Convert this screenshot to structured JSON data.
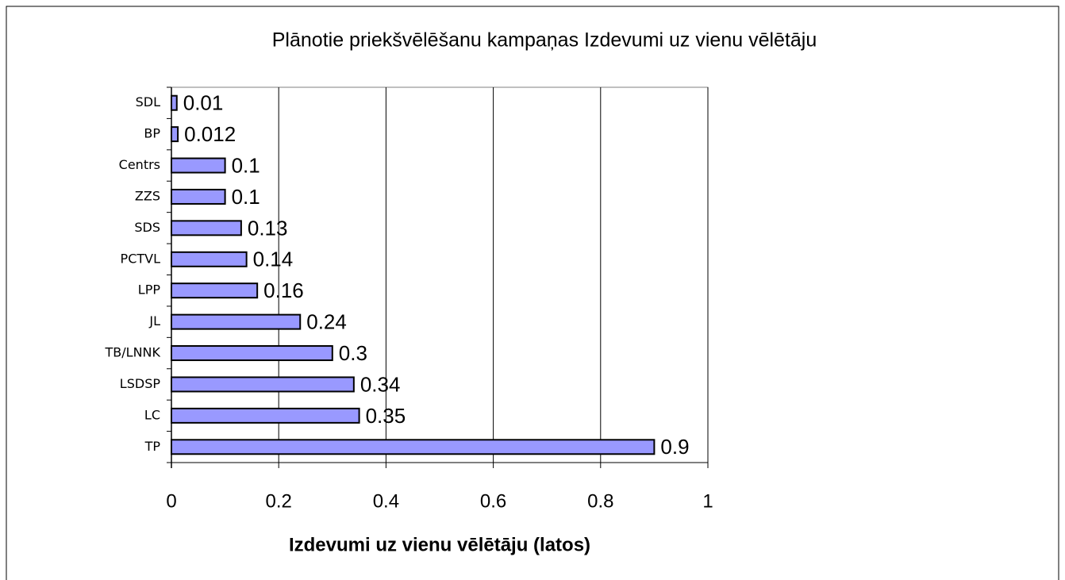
{
  "chart_data": {
    "type": "bar",
    "orientation": "horizontal",
    "title": "Plānotie priekšvēlēšanu kampaņas Izdevumi uz vienu vēlētāju",
    "xlabel": "Izdevumi uz vienu vēlētāju (latos)",
    "categories": [
      "SDL",
      "BP",
      "Centrs",
      "ZZS",
      "SDS",
      "PCTVL",
      "LPP",
      "JL",
      "TB/LNNK",
      "LSDSP",
      "LC",
      "TP"
    ],
    "values": [
      0.01,
      0.012,
      0.1,
      0.1,
      0.13,
      0.14,
      0.16,
      0.24,
      0.3,
      0.34,
      0.35,
      0.9
    ],
    "color": "#9999ff",
    "xlim": [
      0,
      1
    ],
    "xticks": [
      0,
      0.2,
      0.4,
      0.6,
      0.8,
      1
    ],
    "grid": true
  }
}
